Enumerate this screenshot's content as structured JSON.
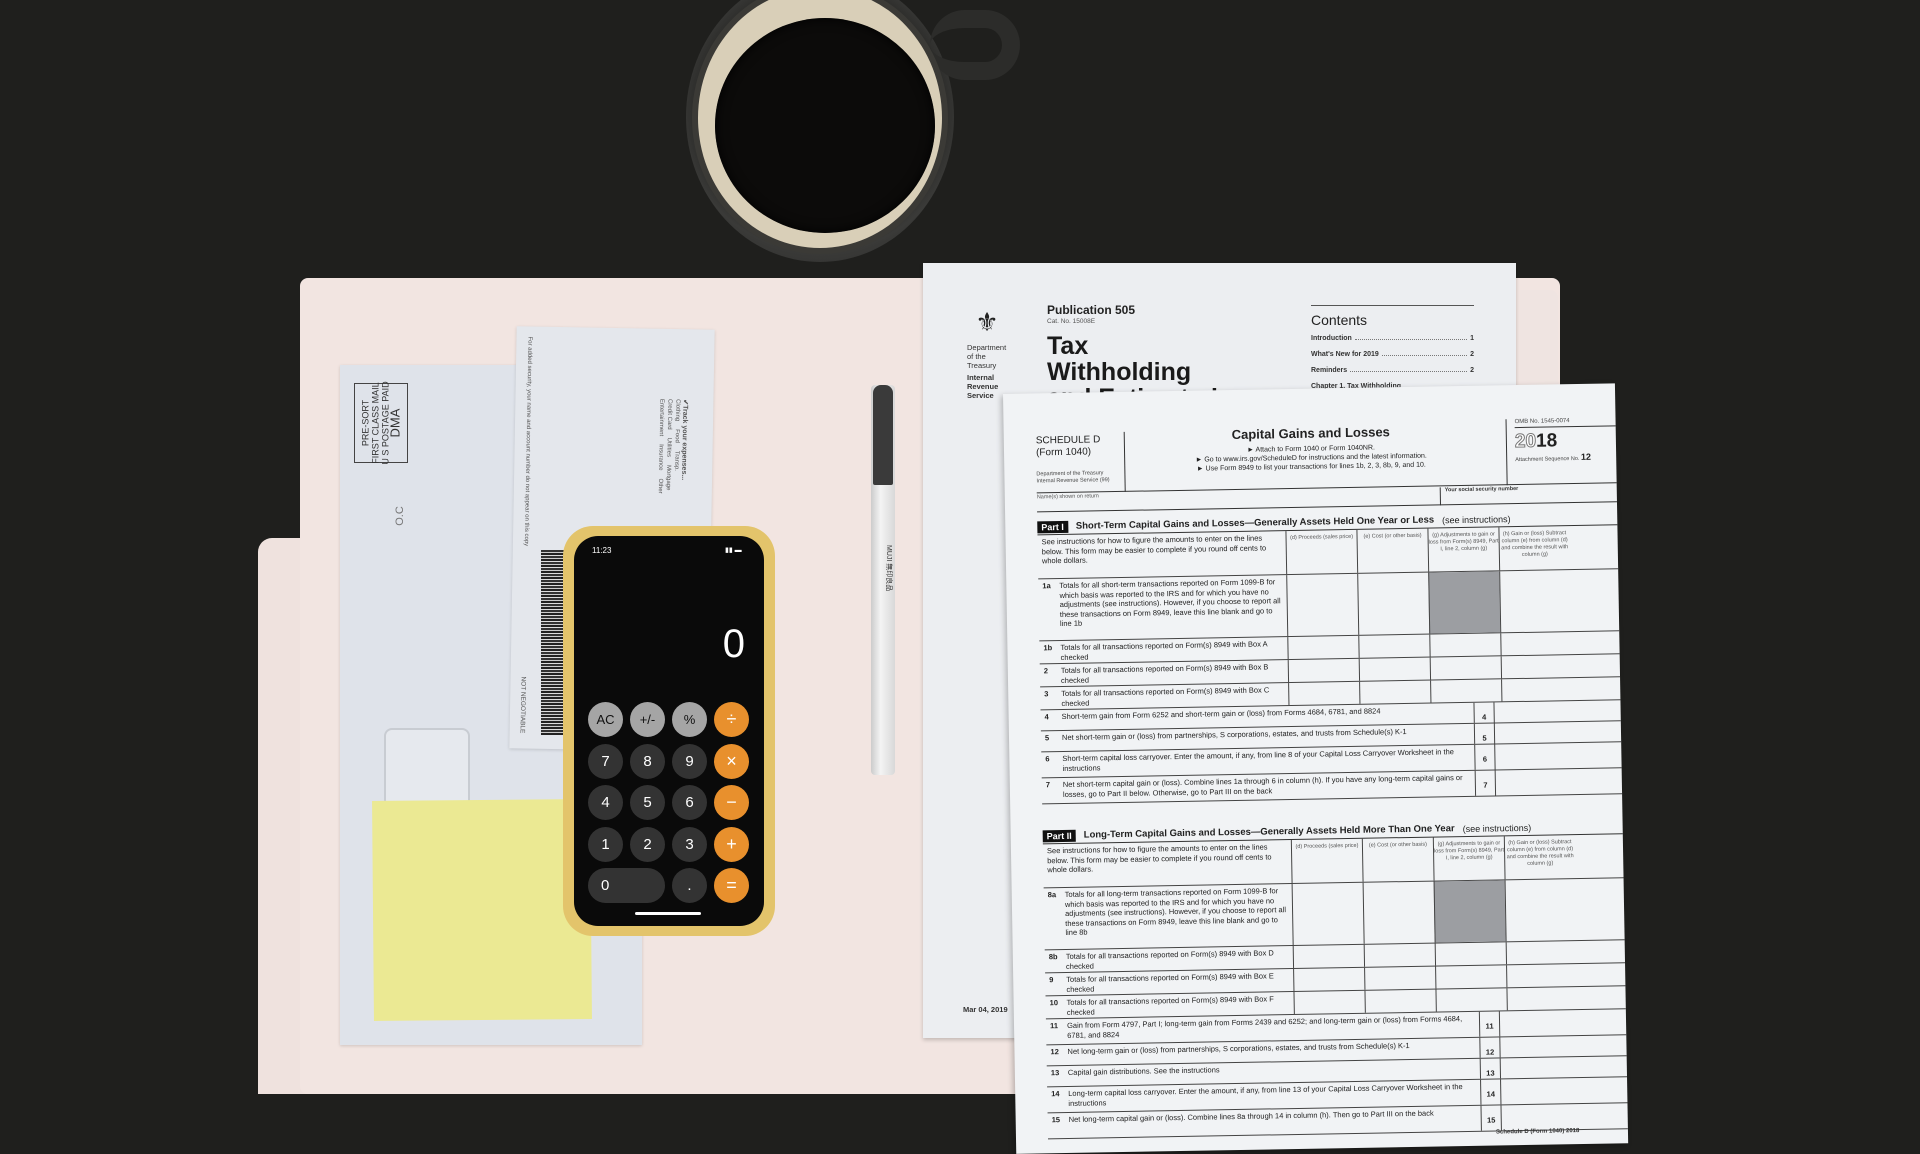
{
  "envelope": {
    "stamp_lines": [
      "PRE-SORT",
      "FIRST CLASS MAIL",
      "U S POSTAGE PAID"
    ],
    "stamp_dma": "DMA",
    "mark": "O.C"
  },
  "check": {
    "security_note": "For added security, your name and account number do not appear on this copy",
    "track_title": "✔Track your expenses...",
    "track_options": [
      "Clothing",
      "Food",
      "Transp.",
      "Credit Card",
      "Utilities",
      "Mortgage",
      "Entertainment",
      "Insurance",
      "Other"
    ],
    "not_negotiable": "NOT NEGOTIABLE"
  },
  "phone": {
    "status_time": "11:23",
    "display": "0",
    "colors": {
      "case": "#e3c46b",
      "operator": "#e8902d",
      "function": "#a5a5a5",
      "digit": "#333333"
    },
    "keys": [
      {
        "label": "AC",
        "type": "gray"
      },
      {
        "label": "+/-",
        "type": "gray"
      },
      {
        "label": "%",
        "type": "gray"
      },
      {
        "label": "÷",
        "type": "orange"
      },
      {
        "label": "7",
        "type": "digit"
      },
      {
        "label": "8",
        "type": "digit"
      },
      {
        "label": "9",
        "type": "digit"
      },
      {
        "label": "×",
        "type": "orange"
      },
      {
        "label": "4",
        "type": "digit"
      },
      {
        "label": "5",
        "type": "digit"
      },
      {
        "label": "6",
        "type": "digit"
      },
      {
        "label": "−",
        "type": "orange"
      },
      {
        "label": "1",
        "type": "digit"
      },
      {
        "label": "2",
        "type": "digit"
      },
      {
        "label": "3",
        "type": "digit"
      },
      {
        "label": "+",
        "type": "orange"
      },
      {
        "label": "0",
        "type": "wide"
      },
      {
        "label": ".",
        "type": "digit"
      },
      {
        "label": "=",
        "type": "orange"
      }
    ]
  },
  "pen": {
    "label": "MUJI 無印良品"
  },
  "publication": {
    "dept": [
      "Department",
      "of the",
      "Treasury"
    ],
    "irs": [
      "Internal",
      "Revenue",
      "Service"
    ],
    "number": "Publication 505",
    "cat_no": "Cat. No. 15008E",
    "title_lines": [
      "Tax",
      "Withholding",
      "and Estimated"
    ],
    "contents_title": "Contents",
    "toc": [
      {
        "label": "Introduction",
        "page": "1"
      },
      {
        "label": "What's New for 2019",
        "page": "2"
      },
      {
        "label": "Reminders",
        "page": "2"
      },
      {
        "label": "Chapter 1. Tax Withholding",
        "page": ""
      }
    ],
    "date": "Mar 04, 2019"
  },
  "schedule_d": {
    "label": "SCHEDULE D",
    "form": "(Form 1040)",
    "dept": "Department of the Treasury Internal Revenue Service (99)",
    "title": "Capital Gains and Losses",
    "instructions": [
      "► Attach to Form 1040 or Form 1040NR.",
      "► Go to www.irs.gov/ScheduleD for instructions and the latest information.",
      "► Use Form 8949 to list your transactions for lines 1b, 2, 3, 8b, 9, and 10."
    ],
    "omb": "OMB No. 1545-0074",
    "year_prefix": "20",
    "year_suffix": "18",
    "attachment": "Attachment Sequence No.",
    "sequence": "12",
    "name_label": "Name(s) shown on return",
    "ssn_label": "Your social security number",
    "intro": "See instructions for how to figure the amounts to enter on the lines below. This form may be easier to complete if you round off cents to whole dollars.",
    "columns": [
      "(d) Proceeds (sales price)",
      "(e) Cost (or other basis)",
      "(g) Adjustments to gain or loss from Form(s) 8949, Part I, line 2, column (g)",
      "(h) Gain or (loss) Subtract column (e) from column (d) and combine the result with column (g)"
    ],
    "part1": {
      "badge": "Part I",
      "title": "Short-Term Capital Gains and Losses—Generally Assets Held One Year or Less",
      "see": "(see instructions)",
      "table_rows": [
        {
          "n": "1a",
          "text": "Totals for all short-term transactions reported on Form 1099-B for which basis was reported to the IRS and for which you have no adjustments (see instructions). However, if you choose to report all these transactions on Form 8949, leave this line blank and go to line 1b"
        },
        {
          "n": "1b",
          "text": "Totals for all transactions reported on Form(s) 8949 with Box A checked"
        },
        {
          "n": "2",
          "text": "Totals for all transactions reported on Form(s) 8949 with Box B checked"
        },
        {
          "n": "3",
          "text": "Totals for all transactions reported on Form(s) 8949 with Box C checked"
        }
      ],
      "lines": [
        {
          "n": "4",
          "text": "Short-term gain from Form 6252 and short-term gain or (loss) from Forms 4684, 6781, and 8824"
        },
        {
          "n": "5",
          "text": "Net short-term gain or (loss) from partnerships, S corporations, estates, and trusts from Schedule(s) K-1"
        },
        {
          "n": "6",
          "text": "Short-term capital loss carryover. Enter the amount, if any, from line 8 of your Capital Loss Carryover Worksheet in the instructions"
        },
        {
          "n": "7",
          "text": "Net short-term capital gain or (loss). Combine lines 1a through 6 in column (h). If you have any long-term capital gains or losses, go to Part II below. Otherwise, go to Part III on the back"
        }
      ]
    },
    "part2": {
      "badge": "Part II",
      "title": "Long-Term Capital Gains and Losses—Generally Assets Held More Than One Year",
      "see": "(see instructions)",
      "table_rows": [
        {
          "n": "8a",
          "text": "Totals for all long-term transactions reported on Form 1099-B for which basis was reported to the IRS and for which you have no adjustments (see instructions). However, if you choose to report all these transactions on Form 8949, leave this line blank and go to line 8b"
        },
        {
          "n": "8b",
          "text": "Totals for all transactions reported on Form(s) 8949 with Box D checked"
        },
        {
          "n": "9",
          "text": "Totals for all transactions reported on Form(s) 8949 with Box E checked"
        },
        {
          "n": "10",
          "text": "Totals for all transactions reported on Form(s) 8949 with Box F checked"
        }
      ],
      "lines": [
        {
          "n": "11",
          "text": "Gain from Form 4797, Part I; long-term gain from Forms 2439 and 6252; and long-term gain or (loss) from Forms 4684, 6781, and 8824"
        },
        {
          "n": "12",
          "text": "Net long-term gain or (loss) from partnerships, S corporations, estates, and trusts from Schedule(s) K-1"
        },
        {
          "n": "13",
          "text": "Capital gain distributions. See the instructions"
        },
        {
          "n": "14",
          "text": "Long-term capital loss carryover. Enter the amount, if any, from line 13 of your Capital Loss Carryover Worksheet in the instructions"
        },
        {
          "n": "15",
          "text": "Net long-term capital gain or (loss). Combine lines 8a through 14 in column (h). Then go to Part III on the back"
        }
      ]
    },
    "footer": "Schedule D (Form 1040) 2018"
  }
}
